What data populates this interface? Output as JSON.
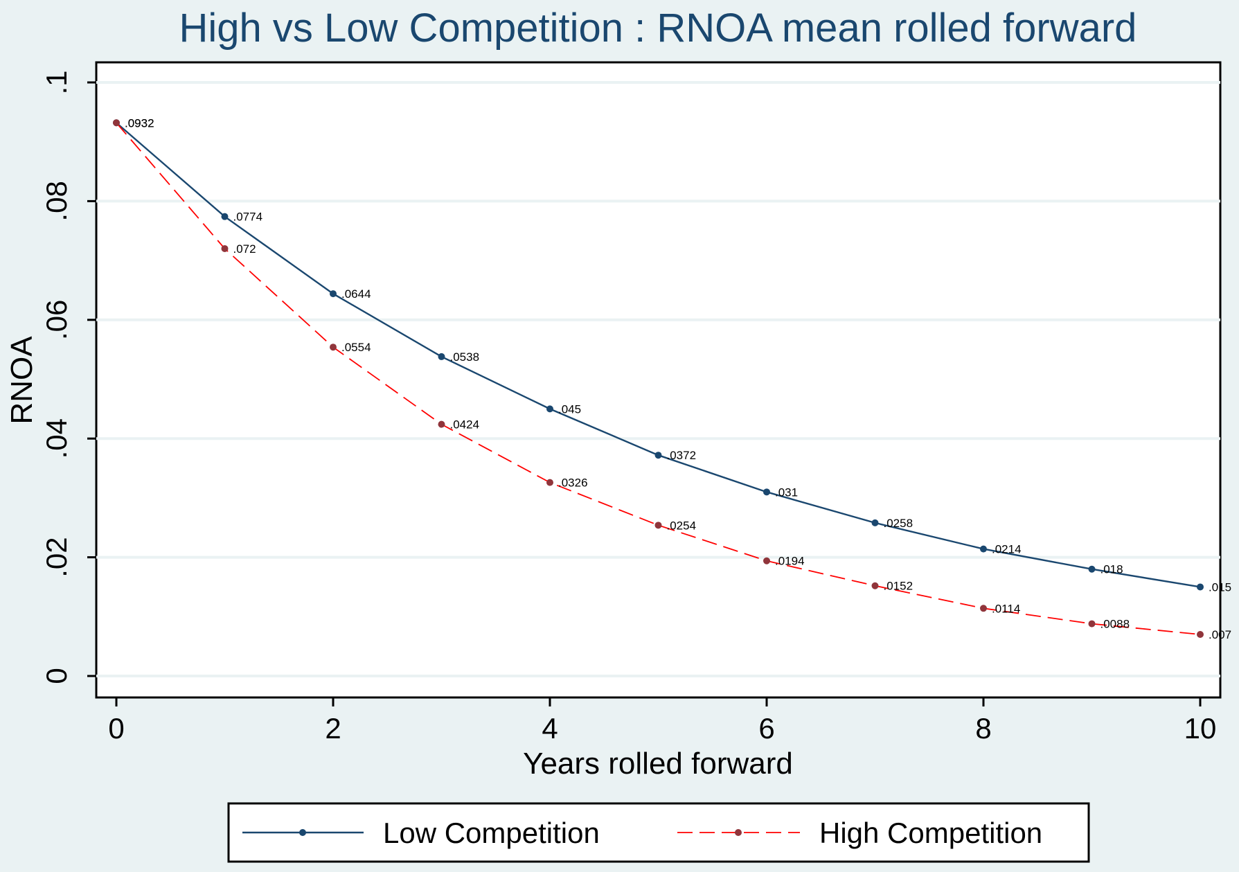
{
  "chart_data": {
    "type": "line",
    "title": "High vs Low Competition : RNOA mean rolled forward",
    "xlabel": "Years rolled forward",
    "ylabel": "RNOA",
    "xlim": [
      0,
      10
    ],
    "ylim": [
      0,
      0.1
    ],
    "x_ticks": [
      0,
      2,
      4,
      6,
      8,
      10
    ],
    "x_tick_labels": [
      "0",
      "2",
      "4",
      "6",
      "8",
      "10"
    ],
    "y_ticks": [
      0,
      0.02,
      0.04,
      0.06,
      0.08,
      0.1
    ],
    "y_tick_labels": [
      "0",
      ".02",
      ".04",
      ".06",
      ".08",
      ".1"
    ],
    "grid": true,
    "legend_position": "bottom",
    "x": [
      0,
      1,
      2,
      3,
      4,
      5,
      6,
      7,
      8,
      9,
      10
    ],
    "series": [
      {
        "name": "Low Competition",
        "color": "#1a476f",
        "dash": "solid",
        "values": [
          0.0932,
          0.0774,
          0.0644,
          0.0538,
          0.045,
          0.0372,
          0.031,
          0.0258,
          0.0214,
          0.018,
          0.015
        ],
        "labels": [
          ".0932",
          ".0774",
          ".0644",
          ".0538",
          ".045",
          ".0372",
          ".031",
          ".0258",
          ".0214",
          ".018",
          ".015"
        ]
      },
      {
        "name": "High Competition",
        "color": "#90353b",
        "line_color": "#ff0000",
        "dash": "dashed",
        "values": [
          0.0932,
          0.072,
          0.0554,
          0.0424,
          0.0326,
          0.0254,
          0.0194,
          0.0152,
          0.0114,
          0.0088,
          0.007
        ],
        "labels": [
          ".0932",
          ".072",
          ".0554",
          ".0424",
          ".0326",
          ".0254",
          ".0194",
          ".0152",
          ".0114",
          ".0088",
          ".007"
        ]
      }
    ]
  }
}
